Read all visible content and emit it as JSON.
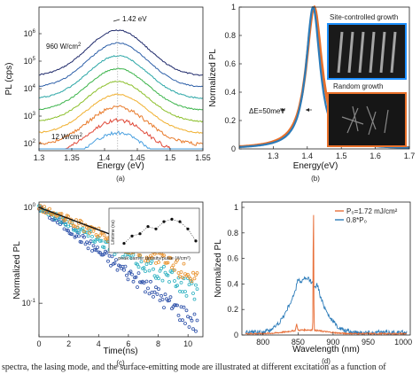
{
  "chart_data": [
    {
      "type": "line",
      "panel_label": "(a)",
      "xlabel": "Energy (eV)",
      "ylabel": "PL (cps)",
      "xlim": [
        1.3,
        1.55
      ],
      "yscale": "log",
      "x_ticks": [
        "1.3",
        "1.35",
        "1.4",
        "1.45",
        "1.5",
        "1.55"
      ],
      "y_ticks": [
        {
          "base": "10",
          "exp": "6"
        },
        {
          "base": "10",
          "exp": "5"
        },
        {
          "base": "10",
          "exp": "4"
        },
        {
          "base": "10",
          "exp": "3"
        },
        {
          "base": "10",
          "exp": "2"
        }
      ],
      "annotations": {
        "peak": "1.42 eV",
        "high_power_base": "960 W/cm",
        "high_power_exp": "2",
        "low_power_base": "12 W/cm",
        "low_power_exp": "2"
      },
      "peak_energy": 1.42,
      "series_colors": [
        "#1f2a6b",
        "#2d5fa8",
        "#2aa6a6",
        "#3cb44b",
        "#8bbf2a",
        "#f0b030",
        "#e87a2a",
        "#e04a3a",
        "#4aa0e0"
      ],
      "grid": false
    },
    {
      "type": "line",
      "panel_label": "(b)",
      "xlabel": "Energy(eV)",
      "ylabel": "Normalized PL",
      "xlim": [
        1.2,
        1.7
      ],
      "ylim": [
        0,
        1
      ],
      "x_ticks": [
        "1.3",
        "1.4",
        "1.5",
        "1.6",
        "1.7"
      ],
      "y_ticks": [
        "0",
        "0.2",
        "0.4",
        "0.6",
        "0.8",
        "1"
      ],
      "peak_energy": 1.42,
      "fwhm_label": "ΔE=50meV",
      "inset_labels": [
        "Site-controlled growth",
        "Random growth"
      ],
      "series_colors": [
        "#e8702a",
        "#2b7bb9"
      ],
      "grid": false
    },
    {
      "type": "scatter",
      "panel_label": "(c)",
      "xlabel": "Time(ns)",
      "ylabel": "Normalized PL",
      "xlim": [
        0,
        11
      ],
      "yscale": "log",
      "x_ticks": [
        "0",
        "2",
        "4",
        "6",
        "8",
        "10"
      ],
      "y_ticks": [
        {
          "base": "10",
          "exp": "0"
        },
        {
          "base": "10",
          "exp": "-1"
        }
      ],
      "series_colors": [
        "#2b4fa8",
        "#2ab0c0",
        "#e8902a",
        "#111111"
      ],
      "inset": {
        "ylabel": "Lifetime (ns)",
        "xlabel": "peak carrier density/pulse (#/cm²)",
        "values": [
          1.6,
          1.9,
          2.0,
          2.3,
          2.2,
          2.5,
          2.6,
          2.5,
          2.2,
          1.7
        ]
      },
      "grid": false
    },
    {
      "type": "line",
      "panel_label": "(d)",
      "xlabel": "Wavelength (nm)",
      "ylabel": "Normalized PL",
      "xlim": [
        770,
        1010
      ],
      "ylim": [
        0,
        1
      ],
      "x_ticks": [
        "800",
        "850",
        "900",
        "950",
        "1000"
      ],
      "y_ticks": [
        "0",
        "0.2",
        "0.4",
        "0.6",
        "0.8",
        "1"
      ],
      "lasing_peak_nm": 872,
      "series": [
        {
          "name": "P₀=1.72 mJ/cm²",
          "color": "#e8703a"
        },
        {
          "name": "0.8*P₀",
          "color": "#2b7bb9"
        }
      ],
      "legend_placement": "top-right",
      "grid": false
    }
  ],
  "caption": "spectra, the lasing mode, and the surface-emitting mode are illustrated at different excitation as a function of"
}
